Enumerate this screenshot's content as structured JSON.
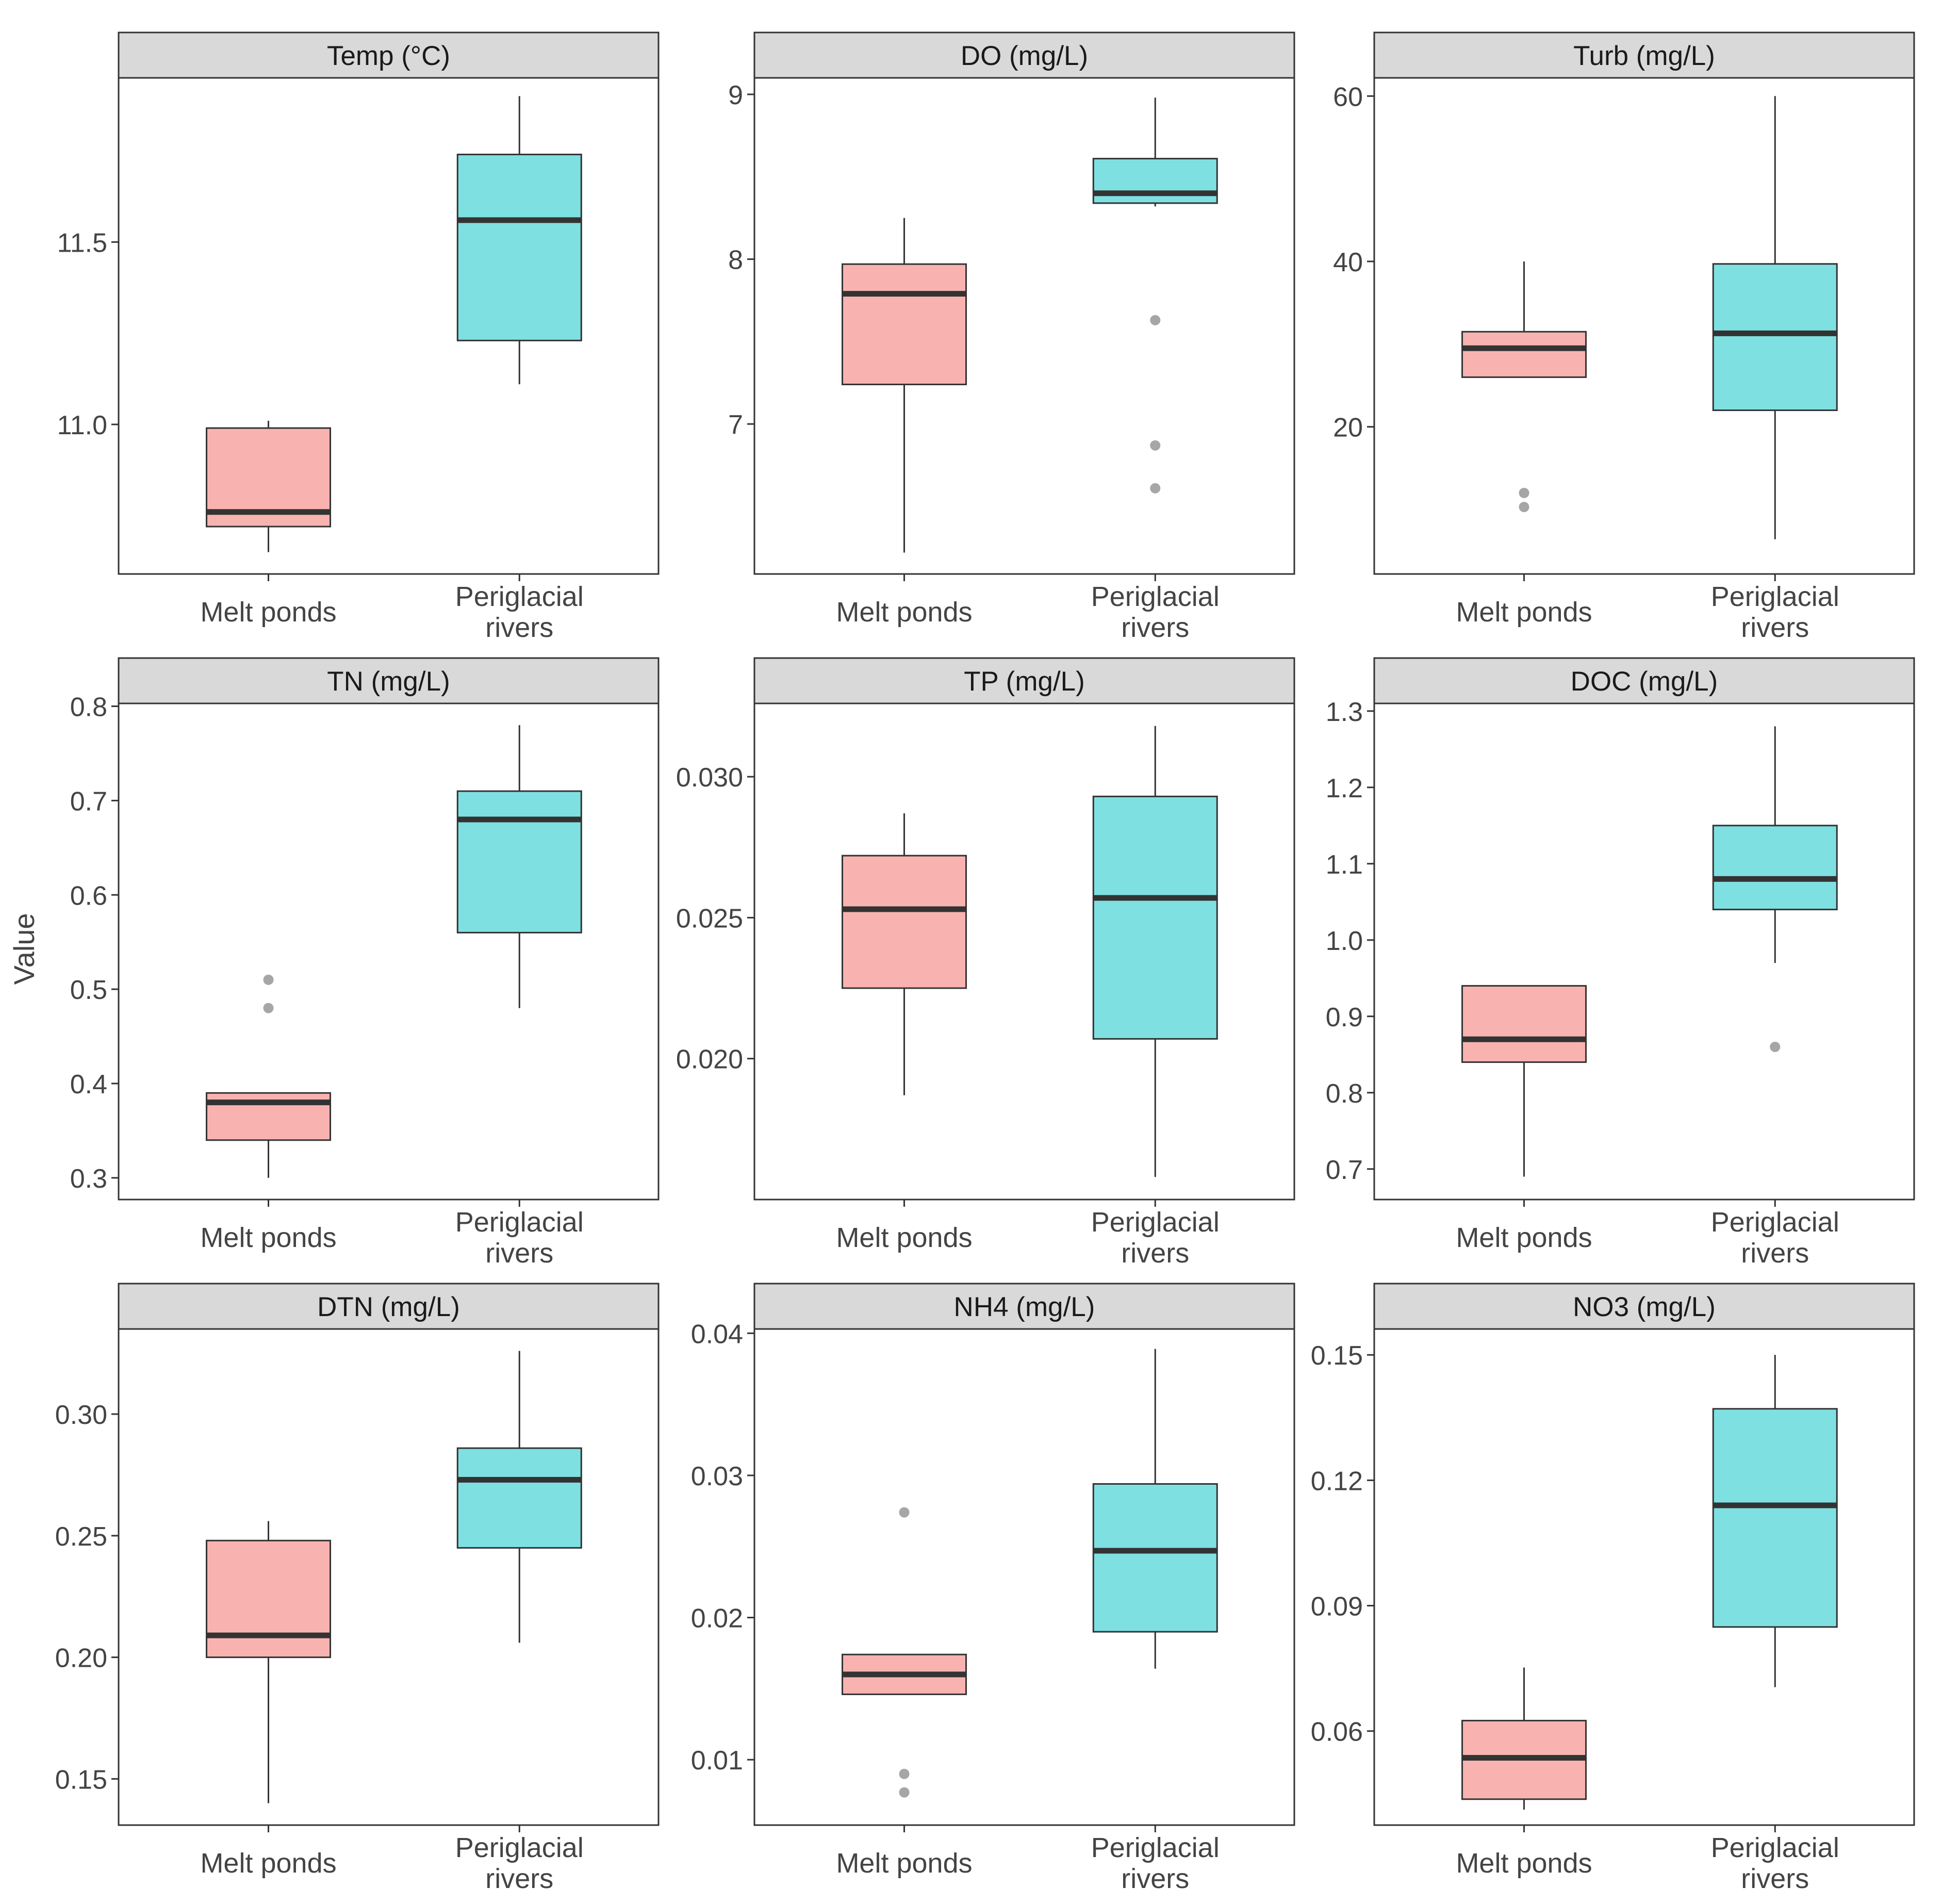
{
  "y_axis_title": "Value",
  "chart_data": {
    "type": "box",
    "layout": "3x3 facets",
    "categories": [
      {
        "id": "melt",
        "lines": [
          "Melt ponds"
        ],
        "color": "#F8B3B0"
      },
      {
        "id": "peri",
        "lines": [
          "Periglacial",
          "rivers"
        ],
        "color": "#7FE0E1"
      }
    ],
    "outlier_color": "#a6a6a6",
    "panels": [
      {
        "title": "Temp (°C)",
        "ylim": [
          10.59,
          11.95
        ],
        "ticks": [
          11.0,
          11.5
        ],
        "tick_labels": [
          "11.0",
          "11.5"
        ],
        "boxes": [
          {
            "min": 10.65,
            "q1": 10.72,
            "median": 10.76,
            "q3": 10.99,
            "max": 11.01,
            "outliers": []
          },
          {
            "min": 11.11,
            "q1": 11.23,
            "median": 11.56,
            "q3": 11.74,
            "max": 11.9,
            "outliers": []
          }
        ]
      },
      {
        "title": "DO (mg/L)",
        "ylim": [
          6.09,
          9.1
        ],
        "ticks": [
          7,
          8,
          9
        ],
        "tick_labels": [
          "7",
          "8",
          "9"
        ],
        "boxes": [
          {
            "min": 6.22,
            "q1": 7.24,
            "median": 7.79,
            "q3": 7.97,
            "max": 8.25,
            "outliers": []
          },
          {
            "min": 8.32,
            "q1": 8.34,
            "median": 8.4,
            "q3": 8.61,
            "max": 8.98,
            "outliers": [
              7.63,
              6.87,
              6.61
            ]
          }
        ]
      },
      {
        "title": "Turb (mg/L)",
        "ylim": [
          2.2,
          62.2
        ],
        "ticks": [
          20,
          40,
          60
        ],
        "tick_labels": [
          "20",
          "40",
          "60"
        ],
        "boxes": [
          {
            "min": 26.0,
            "q1": 26.0,
            "median": 29.5,
            "q3": 31.5,
            "max": 40.0,
            "outliers": [
              12.0,
              10.3
            ]
          },
          {
            "min": 6.4,
            "q1": 22.0,
            "median": 31.3,
            "q3": 39.7,
            "max": 60.0,
            "outliers": []
          }
        ]
      },
      {
        "title": "TN  (mg/L)",
        "ylim": [
          0.277,
          0.803
        ],
        "ticks": [
          0.3,
          0.4,
          0.5,
          0.6,
          0.7,
          0.8
        ],
        "tick_labels": [
          "0.3",
          "0.4",
          "0.5",
          "0.6",
          "0.7",
          "0.8"
        ],
        "boxes": [
          {
            "min": 0.3,
            "q1": 0.34,
            "median": 0.38,
            "q3": 0.39,
            "max": 0.39,
            "outliers": [
              0.51,
              0.48
            ]
          },
          {
            "min": 0.48,
            "q1": 0.56,
            "median": 0.68,
            "q3": 0.71,
            "max": 0.78,
            "outliers": []
          }
        ]
      },
      {
        "title": "TP  (mg/L)",
        "ylim": [
          0.015,
          0.0326
        ],
        "ticks": [
          0.02,
          0.025,
          0.03
        ],
        "tick_labels": [
          "0.020",
          "0.025",
          "0.030"
        ],
        "boxes": [
          {
            "min": 0.0187,
            "q1": 0.0225,
            "median": 0.0253,
            "q3": 0.0272,
            "max": 0.0287,
            "outliers": []
          },
          {
            "min": 0.0158,
            "q1": 0.0207,
            "median": 0.0257,
            "q3": 0.0293,
            "max": 0.0318,
            "outliers": []
          }
        ]
      },
      {
        "title": "DOC (mg/L)",
        "ylim": [
          0.66,
          1.31
        ],
        "ticks": [
          0.7,
          0.8,
          0.9,
          1.0,
          1.1,
          1.2,
          1.3
        ],
        "tick_labels": [
          "0.7",
          "0.8",
          "0.9",
          "1.0",
          "1.1",
          "1.2",
          "1.3"
        ],
        "boxes": [
          {
            "min": 0.69,
            "q1": 0.84,
            "median": 0.87,
            "q3": 0.94,
            "max": 0.94,
            "outliers": []
          },
          {
            "min": 0.97,
            "q1": 1.04,
            "median": 1.08,
            "q3": 1.15,
            "max": 1.28,
            "outliers": [
              0.86
            ]
          }
        ]
      },
      {
        "title": "DTN  (mg/L)",
        "ylim": [
          0.131,
          0.335
        ],
        "ticks": [
          0.15,
          0.2,
          0.25,
          0.3
        ],
        "tick_labels": [
          "0.15",
          "0.20",
          "0.25",
          "0.30"
        ],
        "boxes": [
          {
            "min": 0.14,
            "q1": 0.2,
            "median": 0.209,
            "q3": 0.248,
            "max": 0.256,
            "outliers": []
          },
          {
            "min": 0.206,
            "q1": 0.245,
            "median": 0.273,
            "q3": 0.286,
            "max": 0.326,
            "outliers": []
          }
        ]
      },
      {
        "title": "NH4  (mg/L)",
        "ylim": [
          0.0054,
          0.0403
        ],
        "ticks": [
          0.01,
          0.02,
          0.03,
          0.04
        ],
        "tick_labels": [
          "0.01",
          "0.02",
          "0.03",
          "0.04"
        ],
        "boxes": [
          {
            "min": 0.0146,
            "q1": 0.0146,
            "median": 0.016,
            "q3": 0.0174,
            "max": 0.0174,
            "outliers": [
              0.0274,
              0.009,
              0.0077
            ]
          },
          {
            "min": 0.0164,
            "q1": 0.019,
            "median": 0.0247,
            "q3": 0.0294,
            "max": 0.0389,
            "outliers": []
          }
        ]
      },
      {
        "title": "NO3  (mg/L)",
        "ylim": [
          0.0375,
          0.1562
        ],
        "ticks": [
          0.06,
          0.09,
          0.12,
          0.15
        ],
        "tick_labels": [
          "0.06",
          "0.09",
          "0.12",
          "0.15"
        ],
        "boxes": [
          {
            "min": 0.0412,
            "q1": 0.0437,
            "median": 0.0536,
            "q3": 0.0625,
            "max": 0.0752,
            "outliers": []
          },
          {
            "min": 0.0705,
            "q1": 0.0849,
            "median": 0.114,
            "q3": 0.1371,
            "max": 0.15,
            "outliers": []
          }
        ]
      }
    ]
  }
}
